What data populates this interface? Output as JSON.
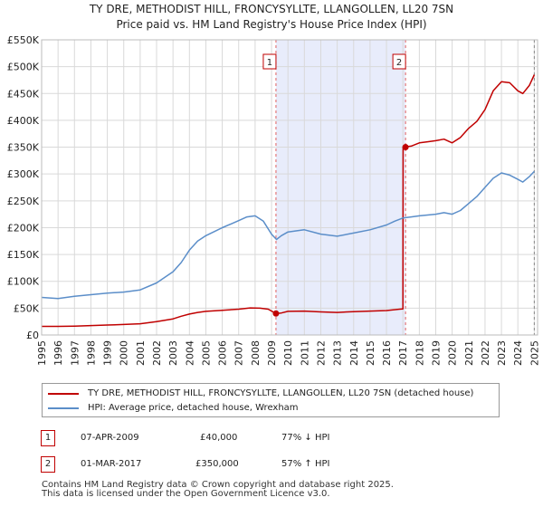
{
  "chart_data": {
    "type": "line",
    "title": "TY DRE, METHODIST HILL, FRONCYSYLLTE, LLANGOLLEN, LL20 7SN",
    "subtitle": "Price paid vs. HM Land Registry's House Price Index (HPI)",
    "xlabel": "",
    "ylabel": "",
    "xlim": [
      1995,
      2025.2
    ],
    "ylim": [
      0,
      550000
    ],
    "y_ticks": [
      {
        "value": 0,
        "label": "£0"
      },
      {
        "value": 50000,
        "label": "£50K"
      },
      {
        "value": 100000,
        "label": "£100K"
      },
      {
        "value": 150000,
        "label": "£150K"
      },
      {
        "value": 200000,
        "label": "£200K"
      },
      {
        "value": 250000,
        "label": "£250K"
      },
      {
        "value": 300000,
        "label": "£300K"
      },
      {
        "value": 350000,
        "label": "£350K"
      },
      {
        "value": 400000,
        "label": "£400K"
      },
      {
        "value": 450000,
        "label": "£450K"
      },
      {
        "value": 500000,
        "label": "£500K"
      },
      {
        "value": 550000,
        "label": "£550K"
      }
    ],
    "x_ticks": [
      "1995",
      "1996",
      "1997",
      "1998",
      "1999",
      "2000",
      "2001",
      "2002",
      "2003",
      "2004",
      "2005",
      "2006",
      "2007",
      "2008",
      "2009",
      "2010",
      "2011",
      "2012",
      "2013",
      "2014",
      "2015",
      "2016",
      "2017",
      "2018",
      "2019",
      "2020",
      "2021",
      "2022",
      "2023",
      "2024",
      "2025"
    ],
    "grid": true,
    "series": [
      {
        "name": "TY DRE, METHODIST HILL, FRONCYSYLLTE, LLANGOLLEN, LL20 7SN (detached house)",
        "color": "#c00000",
        "points": [
          [
            1995.0,
            16000
          ],
          [
            1996.0,
            16000
          ],
          [
            1997.0,
            16500
          ],
          [
            1998.0,
            17500
          ],
          [
            1999.0,
            18500
          ],
          [
            2000.0,
            19500
          ],
          [
            2001.0,
            21000
          ],
          [
            2002.0,
            25000
          ],
          [
            2003.0,
            30000
          ],
          [
            2003.5,
            35000
          ],
          [
            2004.0,
            39000
          ],
          [
            2004.5,
            42000
          ],
          [
            2005.0,
            44000
          ],
          [
            2006.0,
            46000
          ],
          [
            2007.0,
            48000
          ],
          [
            2007.7,
            50500
          ],
          [
            2008.3,
            50000
          ],
          [
            2008.8,
            48000
          ],
          [
            2009.27,
            40000
          ],
          [
            2009.6,
            41000
          ],
          [
            2010.0,
            44000
          ],
          [
            2011.0,
            44500
          ],
          [
            2012.0,
            43000
          ],
          [
            2013.0,
            42000
          ],
          [
            2014.0,
            43500
          ],
          [
            2015.0,
            44500
          ],
          [
            2016.0,
            45500
          ],
          [
            2016.8,
            48000
          ],
          [
            2017.0,
            48500
          ],
          [
            2017.01,
            350000
          ],
          [
            2017.5,
            352000
          ],
          [
            2018.0,
            358000
          ],
          [
            2018.5,
            360000
          ],
          [
            2019.0,
            362000
          ],
          [
            2019.5,
            365000
          ],
          [
            2020.0,
            358000
          ],
          [
            2020.5,
            368000
          ],
          [
            2021.0,
            385000
          ],
          [
            2021.5,
            398000
          ],
          [
            2022.0,
            420000
          ],
          [
            2022.5,
            455000
          ],
          [
            2023.0,
            472000
          ],
          [
            2023.5,
            470000
          ],
          [
            2024.0,
            455000
          ],
          [
            2024.3,
            450000
          ],
          [
            2024.7,
            465000
          ],
          [
            2025.0,
            485000
          ]
        ]
      },
      {
        "name": "HPI: Average price, detached house, Wrexham",
        "color": "#5b8ec9",
        "points": [
          [
            1995.0,
            70000
          ],
          [
            1996.0,
            68000
          ],
          [
            1997.0,
            72000
          ],
          [
            1998.0,
            75000
          ],
          [
            1999.0,
            78000
          ],
          [
            2000.0,
            80000
          ],
          [
            2001.0,
            84000
          ],
          [
            2002.0,
            97000
          ],
          [
            2003.0,
            118000
          ],
          [
            2003.5,
            135000
          ],
          [
            2004.0,
            158000
          ],
          [
            2004.5,
            175000
          ],
          [
            2005.0,
            185000
          ],
          [
            2006.0,
            200000
          ],
          [
            2007.0,
            213000
          ],
          [
            2007.5,
            220000
          ],
          [
            2008.0,
            222000
          ],
          [
            2008.5,
            212000
          ],
          [
            2009.0,
            188000
          ],
          [
            2009.3,
            178000
          ],
          [
            2009.6,
            185000
          ],
          [
            2010.0,
            192000
          ],
          [
            2011.0,
            196000
          ],
          [
            2012.0,
            188000
          ],
          [
            2013.0,
            184000
          ],
          [
            2014.0,
            190000
          ],
          [
            2015.0,
            196000
          ],
          [
            2016.0,
            205000
          ],
          [
            2016.5,
            212000
          ],
          [
            2017.0,
            218000
          ],
          [
            2017.5,
            220000
          ],
          [
            2018.0,
            222000
          ],
          [
            2019.0,
            225000
          ],
          [
            2019.5,
            228000
          ],
          [
            2020.0,
            225000
          ],
          [
            2020.5,
            232000
          ],
          [
            2021.0,
            245000
          ],
          [
            2021.5,
            258000
          ],
          [
            2022.0,
            275000
          ],
          [
            2022.5,
            292000
          ],
          [
            2023.0,
            302000
          ],
          [
            2023.5,
            298000
          ],
          [
            2024.0,
            290000
          ],
          [
            2024.3,
            285000
          ],
          [
            2024.7,
            295000
          ],
          [
            2025.0,
            305000
          ]
        ]
      }
    ],
    "annotations": [
      {
        "label": "1",
        "year": 2009.27,
        "value": 40000
      },
      {
        "label": "2",
        "year": 2017.16,
        "value": 350000
      }
    ],
    "shaded_range": [
      2009.27,
      2017.16
    ],
    "end_line_year": 2025.0
  },
  "legend": {
    "red_label": "TY DRE, METHODIST HILL, FRONCYSYLLTE, LLANGOLLEN, LL20 7SN (detached house)",
    "blue_label": "HPI: Average price, detached house, Wrexham"
  },
  "sales": [
    {
      "num": "1",
      "date": "07-APR-2009",
      "price": "£40,000",
      "hpi": "77% ↓ HPI"
    },
    {
      "num": "2",
      "date": "01-MAR-2017",
      "price": "£350,000",
      "hpi": "57% ↑ HPI"
    }
  ],
  "footer": {
    "line1": "Contains HM Land Registry data © Crown copyright and database right 2025.",
    "line2": "This data is licensed under the Open Government Licence v3.0."
  }
}
